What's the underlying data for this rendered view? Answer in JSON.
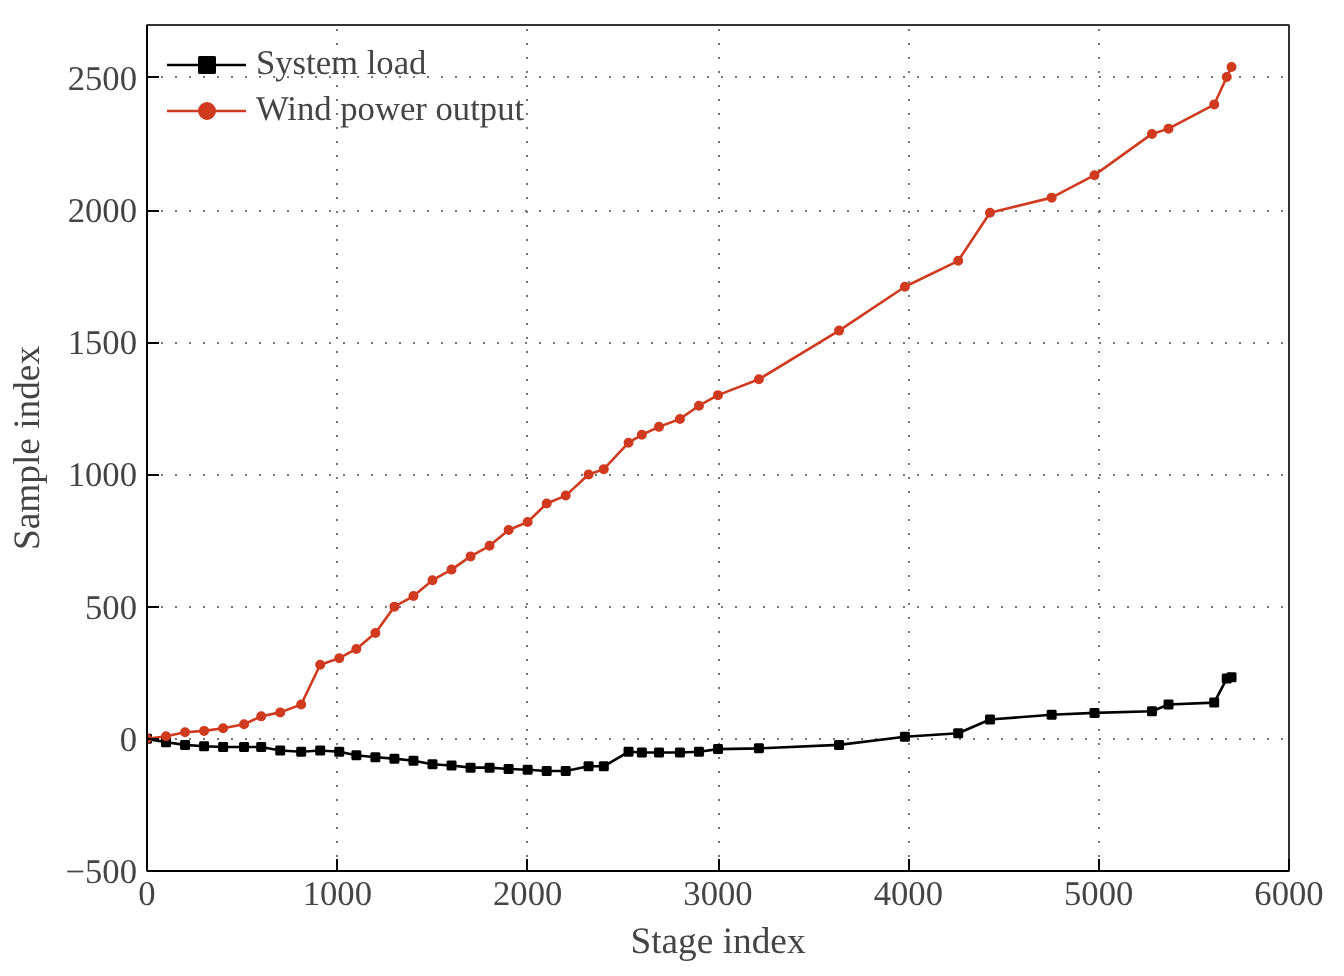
{
  "chart_data": {
    "type": "line",
    "xlabel": "Stage index",
    "ylabel": "Sample index",
    "xlim": [
      0,
      6000
    ],
    "ylim": [
      -500,
      2700
    ],
    "xticks": [
      0,
      1000,
      2000,
      3000,
      4000,
      5000,
      6000
    ],
    "yticks": [
      -500,
      0,
      500,
      1000,
      1500,
      2000,
      2500
    ],
    "grid": true,
    "legend": "top left",
    "line_style": "solid",
    "series": [
      {
        "name": "System load",
        "color": "#000000",
        "marker": "square",
        "x": [
          0,
          100,
          200,
          300,
          400,
          510,
          600,
          700,
          810,
          910,
          1010,
          1100,
          1200,
          1300,
          1400,
          1500,
          1600,
          1700,
          1800,
          1900,
          2000,
          2100,
          2200,
          2320,
          2400,
          2530,
          2600,
          2690,
          2800,
          2900,
          3000,
          3215,
          3636,
          3982,
          4262,
          4429,
          4753,
          4978,
          5280,
          5367,
          5607,
          5673,
          5698
        ],
        "values": [
          0,
          -13,
          -23,
          -28,
          -31,
          -31,
          -31,
          -44,
          -49,
          -44,
          -49,
          -62,
          -70,
          -75,
          -83,
          -96,
          -101,
          -109,
          -109,
          -114,
          -117,
          -122,
          -122,
          -104,
          -104,
          -49,
          -52,
          -52,
          -52,
          -49,
          -39,
          -36,
          -23,
          8,
          21,
          73,
          91,
          98,
          104,
          130,
          137,
          228,
          233
        ]
      },
      {
        "name": "Wind power output",
        "color": "#d03a1f",
        "marker": "circle",
        "x": [
          0,
          100,
          200,
          300,
          400,
          510,
          600,
          700,
          810,
          910,
          1010,
          1100,
          1200,
          1300,
          1400,
          1500,
          1600,
          1700,
          1800,
          1900,
          2000,
          2100,
          2200,
          2320,
          2400,
          2530,
          2600,
          2690,
          2800,
          2900,
          3000,
          3215,
          3636,
          3982,
          4262,
          4429,
          4753,
          4978,
          5280,
          5367,
          5607,
          5673,
          5698
        ],
        "values": [
          0,
          10,
          25,
          30,
          40,
          55,
          85,
          100,
          130,
          280,
          305,
          340,
          400,
          500,
          540,
          600,
          640,
          690,
          730,
          790,
          820,
          890,
          920,
          1000,
          1020,
          1120,
          1150,
          1180,
          1210,
          1260,
          1300,
          1360,
          1544,
          1710,
          1808,
          1990,
          2047,
          2132,
          2288,
          2308,
          2399,
          2503,
          2541
        ]
      }
    ]
  }
}
